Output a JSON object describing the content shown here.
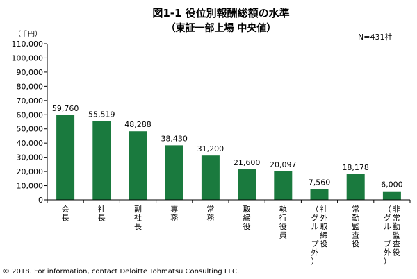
{
  "chart_data": {
    "type": "bar",
    "title": "図1-1 役位別報酬総額の水準",
    "subtitle": "（東証一部上場 中央値）",
    "unit_label": "（千円）",
    "note": "N=431社",
    "categories": [
      "会長",
      "社長",
      "副社長",
      "専務",
      "常務",
      "取締役",
      "執行役員",
      "社外取締役（グループ外）",
      "常勤監査役",
      "非常勤監査役（グループ外）"
    ],
    "category_lines": [
      [
        "会長"
      ],
      [
        "社長"
      ],
      [
        "副社長"
      ],
      [
        "専務"
      ],
      [
        "常務"
      ],
      [
        "取締役"
      ],
      [
        "執行役員"
      ],
      [
        "社外取締役",
        "（グループ外）"
      ],
      [
        "常勤監査役"
      ],
      [
        "非常勤監査役",
        "（グループ外）"
      ]
    ],
    "values": [
      59760,
      55519,
      48288,
      38430,
      31200,
      21600,
      20097,
      7560,
      18178,
      6000
    ],
    "data_labels": [
      "59,760",
      "55,519",
      "48,288",
      "38,430",
      "31,200",
      "21,600",
      "20,097",
      "7,560",
      "18,178",
      "6,000"
    ],
    "ylim": [
      0,
      110000
    ],
    "y_ticks": [
      0,
      10000,
      20000,
      30000,
      40000,
      50000,
      60000,
      70000,
      80000,
      90000,
      100000,
      110000
    ],
    "y_tick_labels": [
      "0",
      "10,000",
      "20,000",
      "30,000",
      "40,000",
      "50,000",
      "60,000",
      "70,000",
      "80,000",
      "90,000",
      "100,000",
      "110,000"
    ],
    "bar_color": "#1a7a3e",
    "grid": false
  },
  "footer": "© 2018. For information, contact Deloitte Tohmatsu Consulting LLC."
}
